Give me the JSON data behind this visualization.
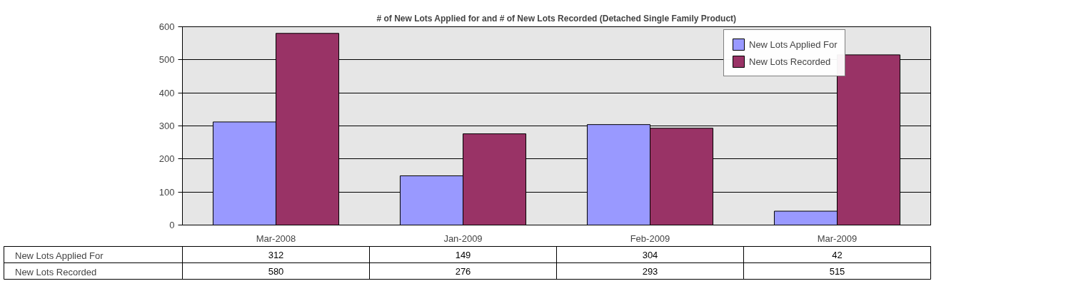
{
  "chart_data": {
    "type": "bar",
    "title": "# of New Lots Applied for and # of New Lots Recorded (Detached Single Family Product)",
    "categories": [
      "Mar-2008",
      "Jan-2009",
      "Feb-2009",
      "Mar-2009"
    ],
    "series": [
      {
        "name": "New Lots Applied For",
        "color": "#9999ff",
        "values": [
          312,
          149,
          304,
          42
        ]
      },
      {
        "name": "New Lots Recorded",
        "color": "#993366",
        "values": [
          580,
          276,
          293,
          515
        ]
      }
    ],
    "ylim": [
      0,
      600
    ],
    "yticks": [
      0,
      100,
      200,
      300,
      400,
      500,
      600
    ],
    "grid": "y",
    "legend": "top right",
    "data_labels": true
  }
}
